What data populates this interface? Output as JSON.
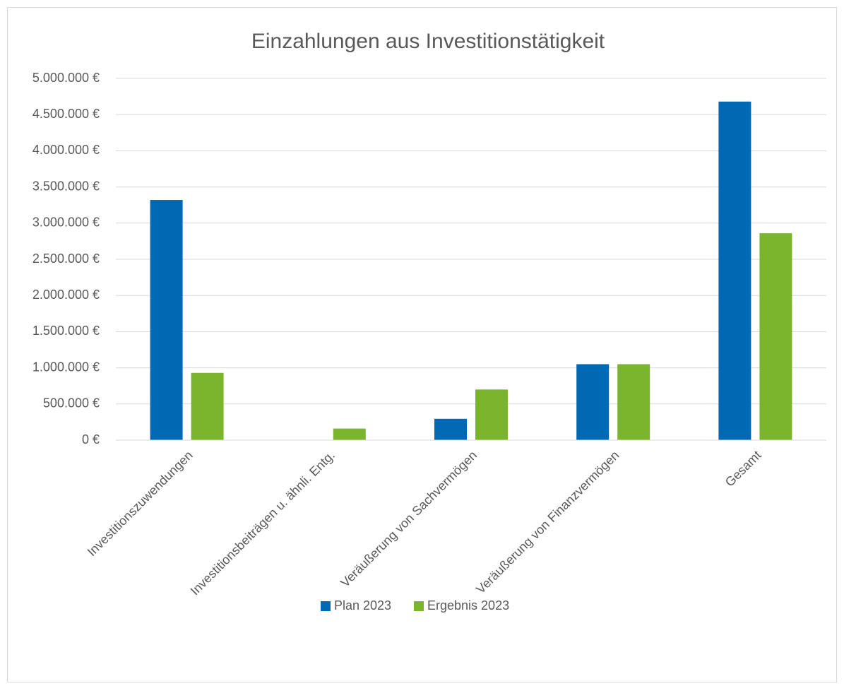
{
  "chart_data": {
    "type": "bar",
    "title": "Einzahlungen aus Investitionstätigkeit",
    "categories": [
      "Investitionszuwendungen",
      "Investitionsbeiträgen u. ähnli. Entg.",
      "Veräußerung von Sachvermögen",
      "Veräußerung von Finanzvermögen",
      "Gesamt"
    ],
    "series": [
      {
        "name": "Plan 2023",
        "color": "#0069b4",
        "values": [
          3320000,
          0,
          295000,
          1050000,
          4680000
        ]
      },
      {
        "name": "Ergebnis 2023",
        "color": "#7ab52d",
        "values": [
          930000,
          160000,
          700000,
          1050000,
          2860000
        ]
      }
    ],
    "ylim": [
      0,
      5000000
    ],
    "yticks": [
      {
        "value": 0,
        "label": "0 €"
      },
      {
        "value": 500000,
        "label": "500.000 €"
      },
      {
        "value": 1000000,
        "label": "1.000.000 €"
      },
      {
        "value": 1500000,
        "label": "1.500.000 €"
      },
      {
        "value": 2000000,
        "label": "2.000.000 €"
      },
      {
        "value": 2500000,
        "label": "2.500.000 €"
      },
      {
        "value": 3000000,
        "label": "3.000.000 €"
      },
      {
        "value": 3500000,
        "label": "3.500.000 €"
      },
      {
        "value": 4000000,
        "label": "4.000.000 €"
      },
      {
        "value": 4500000,
        "label": "4.500.000 €"
      },
      {
        "value": 5000000,
        "label": "5.000.000 €"
      }
    ],
    "grid": true,
    "legend": "bottom"
  }
}
